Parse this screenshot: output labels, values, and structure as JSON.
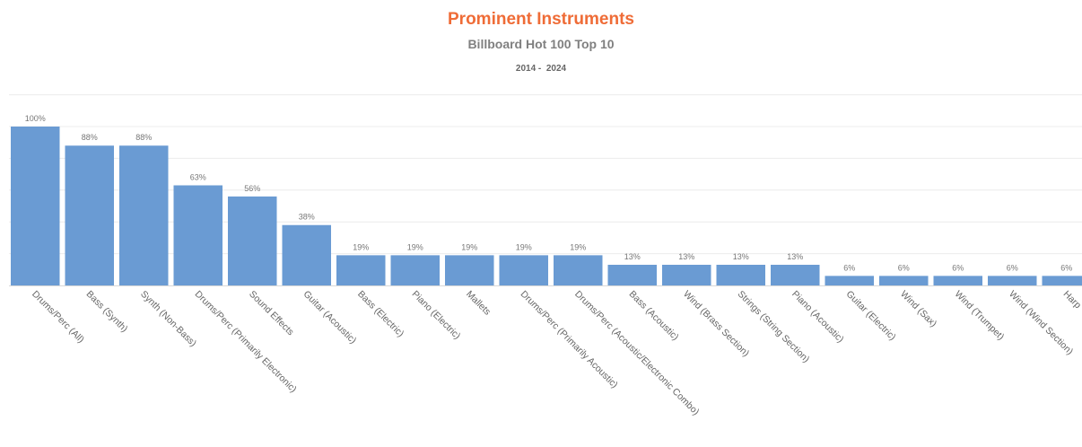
{
  "chart_data": {
    "type": "bar",
    "title": "Prominent Instruments",
    "subtitle": "Billboard Hot 100 Top 10",
    "date_range": "2014 -  2024",
    "categories": [
      "Drums/Perc (All)",
      "Bass (Synth)",
      "Synth (Non-Bass)",
      "Drums/Perc (Primarily Electronic)",
      "Sound Effects",
      "Guitar (Acoustic)",
      "Bass (Electric)",
      "Piano (Electric)",
      "Mallets",
      "Drums/Perc (Primarily Acoustic)",
      "Drums/Perc (Acoustic/Electronic Combo)",
      "Bass (Acoustic)",
      "Wind (Brass Section)",
      "Strings (String Section)",
      "Piano (Acoustic)",
      "Guitar (Electric)",
      "Wind (Sax)",
      "Wind (Trumpet)",
      "Wind (Wind Section)",
      "Harp"
    ],
    "values": [
      100,
      88,
      88,
      63,
      56,
      38,
      19,
      19,
      19,
      19,
      19,
      13,
      13,
      13,
      13,
      6,
      6,
      6,
      6,
      6
    ],
    "data_labels": [
      "100%",
      "88%",
      "88%",
      "63%",
      "56%",
      "38%",
      "19%",
      "19%",
      "19%",
      "19%",
      "19%",
      "13%",
      "13%",
      "13%",
      "13%",
      "6%",
      "6%",
      "6%",
      "6%",
      "6%"
    ],
    "xlabel": "",
    "ylabel": "",
    "ylim": [
      0,
      120
    ],
    "grid": true,
    "legend": "none",
    "bar_color": "#6a9bd3",
    "title_color": "#ef6c37"
  }
}
